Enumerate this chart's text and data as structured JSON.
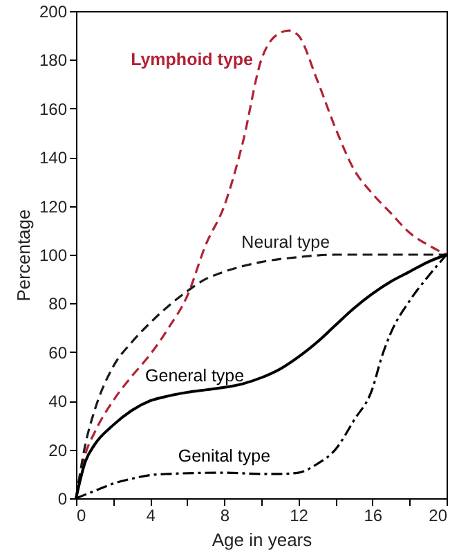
{
  "chart_data": {
    "type": "line",
    "xlabel": "Age in years",
    "ylabel": "Percentage",
    "xlim": [
      0,
      20
    ],
    "ylim": [
      0,
      200
    ],
    "xticks": [
      0,
      {
        "value": 2,
        "label": null
      },
      4,
      {
        "value": 6,
        "label": null
      },
      8,
      {
        "value": 10,
        "label": null
      },
      12,
      {
        "value": 14,
        "label": null
      },
      16,
      {
        "value": 18,
        "label": null
      },
      20
    ],
    "yticks": [
      0,
      20,
      40,
      60,
      80,
      100,
      120,
      140,
      160,
      180,
      200
    ],
    "grid": false,
    "marker": "none",
    "series": [
      {
        "name": "Lymphoid type",
        "color": "#b22234",
        "line_style": "dashed",
        "x": [
          0,
          0.5,
          1,
          2,
          3,
          4,
          5,
          6,
          7,
          8,
          9,
          10,
          11,
          11.5,
          12,
          13,
          14,
          15,
          16,
          17,
          18,
          19,
          20
        ],
        "values": [
          0,
          18,
          27,
          40,
          50,
          59,
          70,
          83,
          104,
          120,
          146,
          180,
          191,
          192,
          190,
          172,
          152,
          135,
          125,
          117,
          109,
          104,
          100
        ]
      },
      {
        "name": "Neural type",
        "color": "#1a1a1a",
        "line_style": "dashed",
        "x": [
          0,
          0.5,
          1,
          2,
          3,
          4,
          5,
          6,
          7,
          8,
          10,
          12,
          14,
          20
        ],
        "values": [
          0,
          22,
          36,
          54,
          64,
          72,
          79,
          85,
          90,
          93,
          97,
          99,
          100,
          100
        ]
      },
      {
        "name": "General type",
        "color": "#000000",
        "line_style": "solid",
        "x": [
          0,
          0.5,
          1,
          2,
          3,
          4,
          5,
          6,
          7,
          8,
          9,
          10,
          11,
          12,
          13,
          14,
          15,
          16,
          17,
          18,
          19,
          20
        ],
        "values": [
          0,
          15,
          22,
          30,
          36,
          40,
          42,
          43.5,
          44.5,
          45.5,
          47,
          49.5,
          53,
          58,
          64,
          71,
          78,
          84,
          89,
          93,
          97,
          100
        ]
      },
      {
        "name": "Genital type",
        "color": "#000000",
        "line_style": "dashdot",
        "x": [
          0,
          1,
          2,
          3,
          4,
          5,
          8,
          10,
          11,
          12,
          13,
          14,
          15,
          16,
          16.5,
          17,
          18,
          19,
          20
        ],
        "values": [
          0,
          3,
          6,
          8,
          9.5,
          10,
          10.5,
          10,
          10,
          10.5,
          14,
          20,
          32,
          45,
          58,
          68,
          81,
          91,
          100
        ]
      }
    ]
  }
}
